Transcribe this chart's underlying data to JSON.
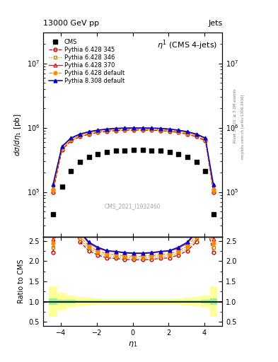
{
  "title_top": "13000 GeV pp",
  "title_right": "Jets",
  "plot_title": "$\\eta^{1}$ (CMS 4-jets)",
  "xlabel": "$\\eta_1$",
  "ylabel_main": "$d\\sigma/d\\eta_1$ [pb]",
  "ylabel_ratio": "Ratio to CMS",
  "watermark": "CMS_2021_I1932460",
  "rivet_label": "Rivet 3.1.10, ≥ 3.2M events",
  "arxiv_label": "[arXiv:1306.3436]",
  "mcplots_label": "mcplots.cern.ch",
  "eta_bins": [
    -4.7,
    -4.2,
    -3.7,
    -3.2,
    -2.7,
    -2.2,
    -1.7,
    -1.2,
    -0.7,
    -0.2,
    0.3,
    0.8,
    1.3,
    1.8,
    2.3,
    2.8,
    3.3,
    3.8,
    4.3,
    4.7
  ],
  "eta_centers": [
    -4.45,
    -3.95,
    -3.45,
    -2.95,
    -2.45,
    -1.95,
    -1.45,
    -0.95,
    -0.45,
    0.05,
    0.55,
    1.05,
    1.55,
    2.05,
    2.55,
    3.05,
    3.55,
    4.05,
    4.5
  ],
  "cms_data": [
    45000.0,
    120000.0,
    210000.0,
    290000.0,
    350000.0,
    390000.0,
    420000.0,
    435000.0,
    445000.0,
    450000.0,
    450000.0,
    445000.0,
    435000.0,
    420000.0,
    390000.0,
    350000.0,
    290000.0,
    210000.0,
    45000.0
  ],
  "p6_345": [
    100000.0,
    450000.0,
    620000.0,
    720000.0,
    790000.0,
    840000.0,
    875000.0,
    900000.0,
    910000.0,
    915000.0,
    915000.0,
    910000.0,
    900000.0,
    875000.0,
    840000.0,
    790000.0,
    720000.0,
    620000.0,
    100000.0
  ],
  "p6_346": [
    105000.0,
    470000.0,
    640000.0,
    740000.0,
    810000.0,
    860000.0,
    895000.0,
    920000.0,
    930000.0,
    935000.0,
    935000.0,
    930000.0,
    920000.0,
    895000.0,
    860000.0,
    810000.0,
    740000.0,
    640000.0,
    105000.0
  ],
  "p6_370": [
    115000.0,
    500000.0,
    680000.0,
    785000.0,
    855000.0,
    905000.0,
    945000.0,
    970000.0,
    980000.0,
    985000.0,
    985000.0,
    980000.0,
    970000.0,
    945000.0,
    905000.0,
    855000.0,
    785000.0,
    680000.0,
    115000.0
  ],
  "p6_default": [
    110000.0,
    480000.0,
    655000.0,
    760000.0,
    830000.0,
    880000.0,
    915000.0,
    940000.0,
    950000.0,
    955000.0,
    955000.0,
    950000.0,
    940000.0,
    915000.0,
    880000.0,
    830000.0,
    760000.0,
    655000.0,
    110000.0
  ],
  "p8_308": [
    130000.0,
    510000.0,
    690000.0,
    795000.0,
    865000.0,
    915000.0,
    950000.0,
    975000.0,
    985000.0,
    990000.0,
    990000.0,
    985000.0,
    975000.0,
    950000.0,
    915000.0,
    865000.0,
    795000.0,
    690000.0,
    130000.0
  ],
  "cms_stat_err_rel": [
    0.08,
    0.05,
    0.04,
    0.03,
    0.03,
    0.02,
    0.02,
    0.02,
    0.02,
    0.02,
    0.02,
    0.02,
    0.02,
    0.02,
    0.02,
    0.03,
    0.03,
    0.04,
    0.08
  ],
  "cms_sys_err_rel": [
    0.38,
    0.22,
    0.15,
    0.12,
    0.1,
    0.08,
    0.07,
    0.07,
    0.07,
    0.07,
    0.07,
    0.07,
    0.07,
    0.07,
    0.08,
    0.1,
    0.12,
    0.15,
    0.38
  ],
  "color_p6_345": "#cc0000",
  "color_p6_346": "#bb8800",
  "color_p6_370": "#cc2222",
  "color_p6_default": "#ff8800",
  "color_p8_308": "#0000cc",
  "ylim_main": [
    20000.0,
    30000000.0
  ],
  "ylim_ratio": [
    0.4,
    2.6
  ],
  "xlim": [
    -5.0,
    5.0
  ]
}
